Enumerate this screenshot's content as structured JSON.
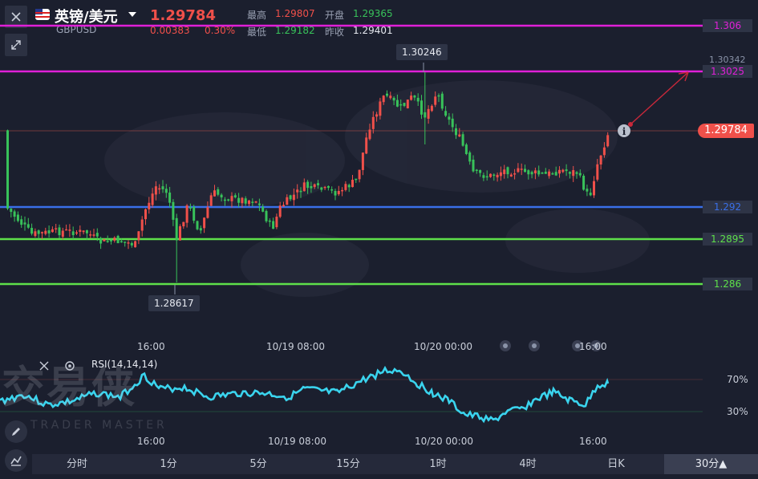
{
  "header": {
    "symbol_cn": "英镑/美元",
    "symbol_code": "GBPUSD",
    "price": "1.29784",
    "change": "0.00383",
    "change_pct": "0.30%",
    "high_label": "最高",
    "high_value": "1.29807",
    "open_label": "开盘",
    "open_value": "1.29365",
    "low_label": "最低",
    "low_value": "1.29182",
    "prev_close_label": "昨收",
    "prev_close_value": "1.29401"
  },
  "levels": {
    "l1": "1.306",
    "l2": "1.3025",
    "l3": "1.292",
    "l4": "1.2895",
    "l5": "1.286",
    "current_tag": "1.29784",
    "axis_top": "1.30342"
  },
  "callouts": {
    "high": "1.30246",
    "low": "1.28617"
  },
  "time_axis": {
    "t1": "16:00",
    "t2": "10/19 08:00",
    "t3": "10/20 00:00",
    "t4": "16:00"
  },
  "rsi": {
    "label": "RSI(14,14,14)",
    "upper": "70%",
    "lower": "30%"
  },
  "watermark": {
    "cn": "交易侠",
    "en": "TRADER MASTER"
  },
  "timeframes": [
    "分时",
    "1分",
    "5分",
    "15分",
    "1时",
    "4时",
    "日K"
  ],
  "selected_timeframe": "30分▲",
  "colors": {
    "magenta": "#e020d8",
    "blue": "#3a6fe8",
    "green": "#5ee04a",
    "up": "#f0504a",
    "down": "#38c25a",
    "rsi": "#3ad4ee"
  }
}
